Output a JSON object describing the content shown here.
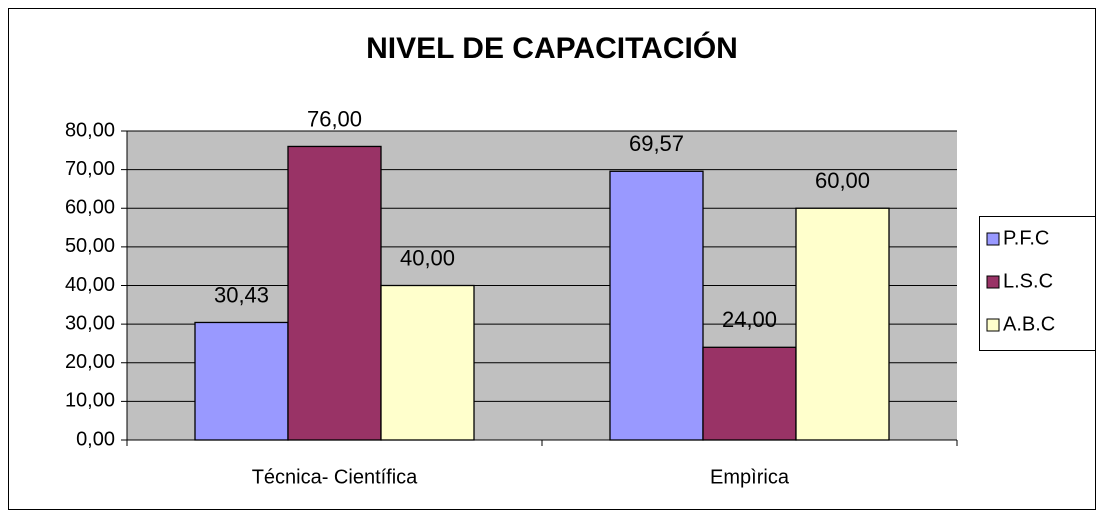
{
  "chart_data": {
    "type": "bar",
    "title": "NIVEL DE  CAPACITACIÓN",
    "categories": [
      "Técnica- Científica",
      "Empìrica"
    ],
    "series": [
      {
        "name": "P.F.C",
        "color": "#9999ff",
        "values": [
          30.43,
          69.57
        ],
        "value_labels": [
          "30,43",
          "69,57"
        ]
      },
      {
        "name": "L.S.C",
        "color": "#993366",
        "values": [
          76,
          24
        ],
        "value_labels": [
          "76,00",
          "24,00"
        ]
      },
      {
        "name": "A.B.C",
        "color": "#ffffcc",
        "values": [
          40,
          60
        ],
        "value_labels": [
          "40,00",
          "60,00"
        ]
      }
    ],
    "ylim": [
      0,
      80
    ],
    "yticks": [
      {
        "value": 0,
        "label": "0,00"
      },
      {
        "value": 10,
        "label": "10,00"
      },
      {
        "value": 20,
        "label": "20,00"
      },
      {
        "value": 30,
        "label": "30,00"
      },
      {
        "value": 40,
        "label": "40,00"
      },
      {
        "value": 50,
        "label": "50,00"
      },
      {
        "value": 60,
        "label": "60,00"
      },
      {
        "value": 70,
        "label": "70,00"
      },
      {
        "value": 80,
        "label": "80,00"
      }
    ],
    "grid": true,
    "legend": "right"
  }
}
